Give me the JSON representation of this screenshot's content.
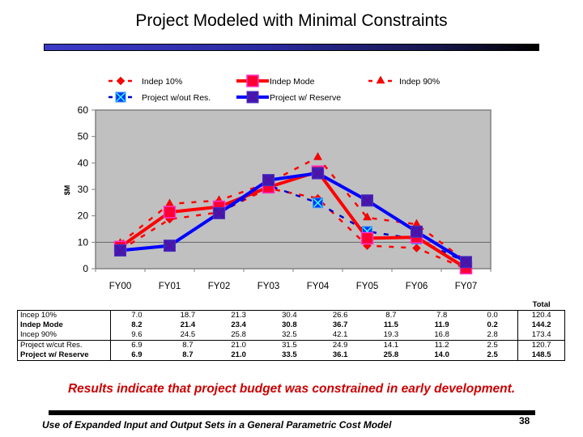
{
  "slide": {
    "title": "Project Modeled with Minimal Constraints",
    "callout": "Results indicate that project budget was constrained in early development.",
    "footer": "Use of Expanded Input and Output Sets in a General Parametric Cost Model",
    "page_number": "38"
  },
  "chart_data": {
    "type": "line",
    "title": "",
    "xlabel": "",
    "ylabel": "$M",
    "categories": [
      "FY00",
      "FY01",
      "FY02",
      "FY03",
      "FY04",
      "FY05",
      "FY06",
      "FY07"
    ],
    "ylim": [
      0,
      60
    ],
    "yticks": [
      0,
      10,
      20,
      30,
      40,
      50,
      60
    ],
    "grid": "horizontal line at 10",
    "legend_position": "top",
    "series": [
      {
        "name": "Indep 10%",
        "values": [
          7.0,
          18.7,
          21.3,
          30.4,
          26.6,
          8.7,
          7.8,
          0.0
        ],
        "color": "#ff0000",
        "style": "dashed",
        "marker": "diamond"
      },
      {
        "name": "Indep Mode",
        "values": [
          8.2,
          21.4,
          23.4,
          30.8,
          36.7,
          11.5,
          11.9,
          0.2
        ],
        "color": "#ff0000",
        "style": "solid",
        "marker": "square"
      },
      {
        "name": "Indep 90%",
        "values": [
          9.6,
          24.5,
          25.8,
          32.5,
          42.1,
          19.3,
          16.8,
          2.8
        ],
        "color": "#ff0000",
        "style": "dashed",
        "marker": "triangle"
      },
      {
        "name": "Project w/out Res.",
        "values": [
          6.9,
          8.7,
          21.0,
          31.5,
          24.9,
          14.1,
          11.2,
          2.5
        ],
        "color": "#0000cc",
        "style": "dashed",
        "marker": "x-square"
      },
      {
        "name": "Project w/ Reserve",
        "values": [
          6.9,
          8.7,
          21.0,
          33.5,
          36.1,
          25.8,
          14.0,
          2.5
        ],
        "color": "#0000ff",
        "style": "solid",
        "marker": "square-x"
      }
    ],
    "plot_background": "#c0c0c0"
  },
  "table": {
    "total_header": "Total",
    "rows": [
      {
        "label": "Incep 10%",
        "bold": false,
        "values": [
          "7.0",
          "18.7",
          "21.3",
          "30.4",
          "26.6",
          "8.7",
          "7.8",
          "0.0"
        ],
        "total": "120.4"
      },
      {
        "label": "Indep Mode",
        "bold": true,
        "values": [
          "8.2",
          "21.4",
          "23.4",
          "30.8",
          "36.7",
          "11.5",
          "11.9",
          "0.2"
        ],
        "total": "144.2"
      },
      {
        "label": "Incep 90%",
        "bold": false,
        "values": [
          "9.6",
          "24.5",
          "25.8",
          "32.5",
          "42.1",
          "19.3",
          "16.8",
          "2.8"
        ],
        "total": "173.4"
      },
      {
        "label": "Project w/cut Res.",
        "bold": false,
        "values": [
          "6.9",
          "8.7",
          "21.0",
          "31.5",
          "24.9",
          "14.1",
          "11.2",
          "2.5"
        ],
        "total": "120.7"
      },
      {
        "label": "Project w/ Reserve",
        "bold": true,
        "values": [
          "6.9",
          "8.7",
          "21.0",
          "33.5",
          "36.1",
          "25.8",
          "14.0",
          "2.5"
        ],
        "total": "148.5"
      }
    ]
  }
}
